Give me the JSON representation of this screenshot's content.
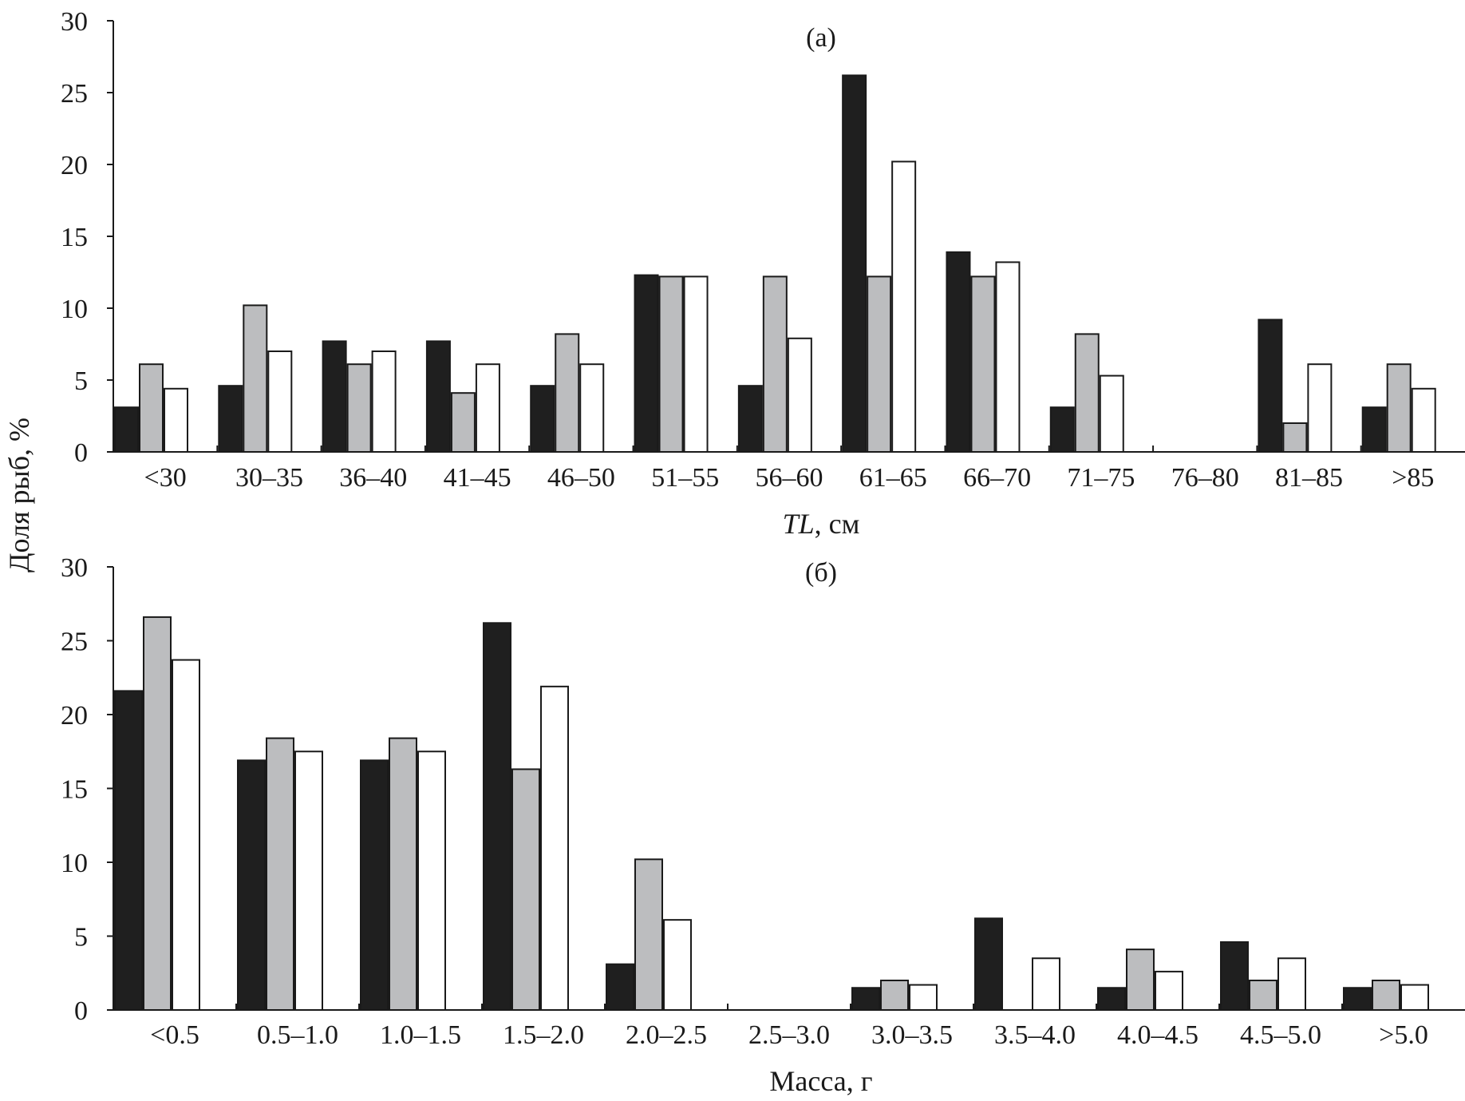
{
  "ylabel": "Доля рыб, %",
  "colors": {
    "series1": "#1f1f1f",
    "series2": "#bcbdbf",
    "series3": "#ffffff",
    "stroke": "#1a1a1a"
  },
  "chart_data": [
    {
      "type": "bar",
      "title": "(а)",
      "xlabel_italic": "TL",
      "xlabel_rest": ", см",
      "ylim": [
        0,
        30
      ],
      "yticks": [
        0,
        5,
        10,
        15,
        20,
        25,
        30
      ],
      "grid": false,
      "categories": [
        "<30",
        "30–35",
        "36–40",
        "41–45",
        "46–50",
        "51–55",
        "56–60",
        "61–65",
        "66–70",
        "71–75",
        "76–80",
        "81–85",
        ">85"
      ],
      "series": [
        {
          "values": [
            3.1,
            4.6,
            7.7,
            7.7,
            4.6,
            12.3,
            4.6,
            26.2,
            13.9,
            3.1,
            0,
            9.2,
            3.1
          ]
        },
        {
          "values": [
            6.1,
            10.2,
            6.1,
            4.1,
            8.2,
            12.2,
            12.2,
            12.2,
            12.2,
            8.2,
            0,
            2.0,
            6.1
          ]
        },
        {
          "values": [
            4.4,
            7.0,
            7.0,
            6.1,
            6.1,
            12.2,
            7.9,
            20.2,
            13.2,
            5.3,
            0,
            6.1,
            4.4
          ]
        }
      ]
    },
    {
      "type": "bar",
      "title": "(б)",
      "xlabel": "Масса, г",
      "ylim": [
        0,
        30
      ],
      "yticks": [
        0,
        5,
        10,
        15,
        20,
        25,
        30
      ],
      "grid": false,
      "categories": [
        "<0.5",
        "0.5–1.0",
        "1.0–1.5",
        "1.5–2.0",
        "2.0–2.5",
        "2.5–3.0",
        "3.0–3.5",
        "3.5–4.0",
        "4.0–4.5",
        "4.5–5.0",
        ">5.0"
      ],
      "series": [
        {
          "values": [
            21.6,
            16.9,
            16.9,
            26.2,
            3.1,
            0,
            1.5,
            6.2,
            1.5,
            4.6,
            1.5
          ]
        },
        {
          "values": [
            26.6,
            18.4,
            18.4,
            16.3,
            10.2,
            0,
            2.0,
            0,
            4.1,
            2.0,
            2.0
          ]
        },
        {
          "values": [
            23.7,
            17.5,
            17.5,
            21.9,
            6.1,
            0,
            1.7,
            3.5,
            2.6,
            3.5,
            1.7
          ]
        }
      ]
    }
  ]
}
